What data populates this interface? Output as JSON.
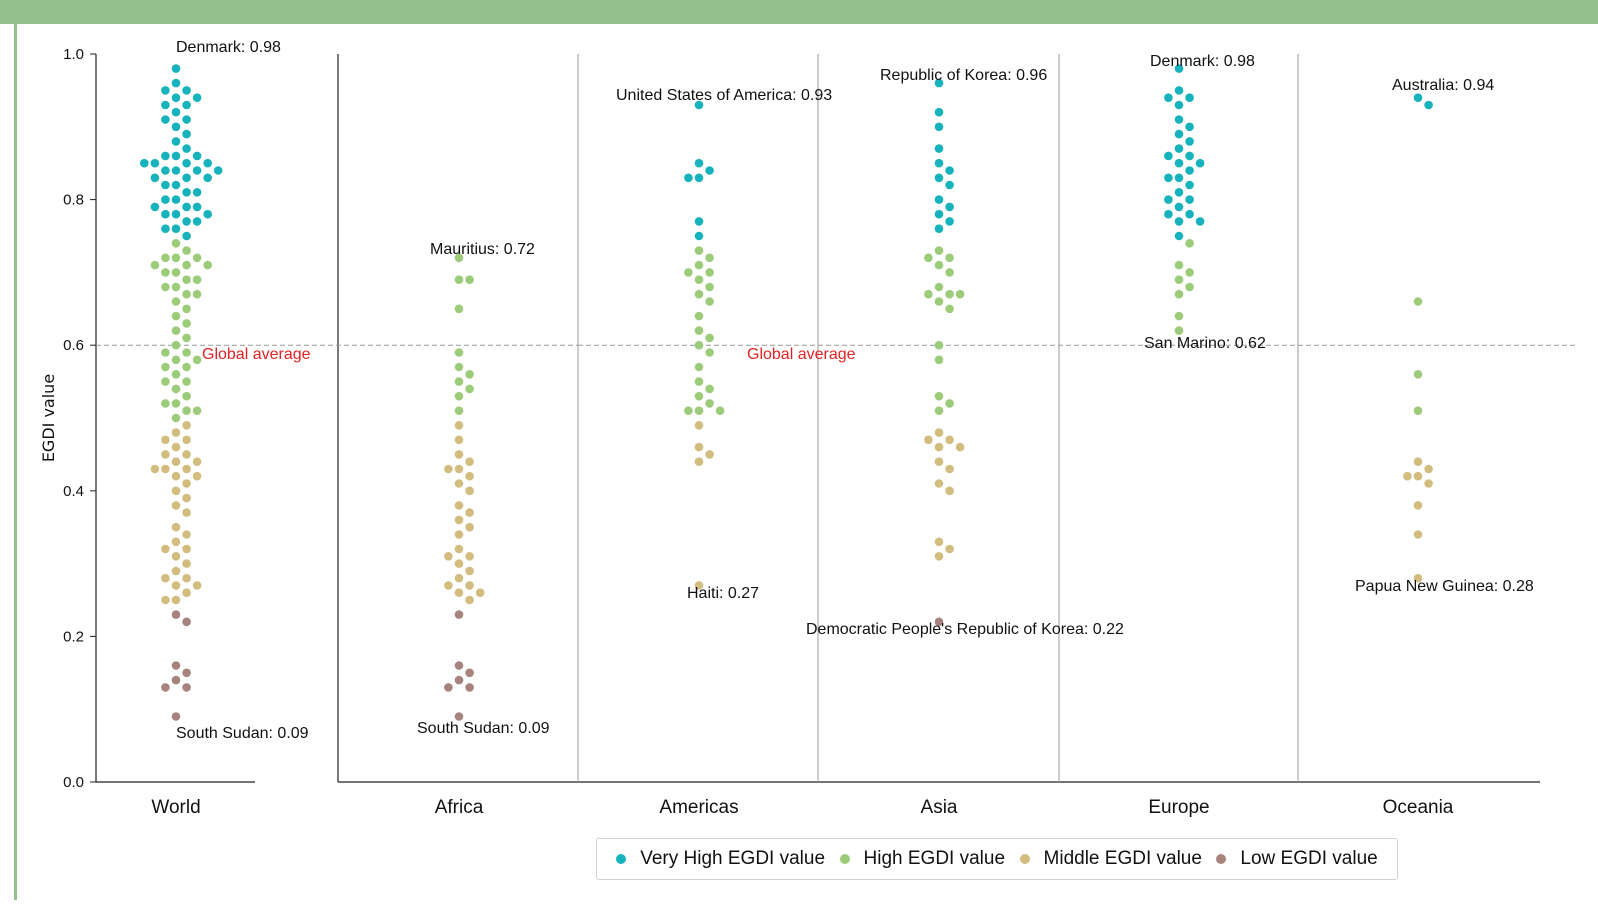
{
  "chart_data": {
    "type": "scatter",
    "subtype": "beeswarm",
    "ylabel": "EGDI value",
    "ylim": [
      0.0,
      1.0
    ],
    "yticks": [
      "0.0",
      "0.2",
      "0.4",
      "0.6",
      "0.8",
      "1.0"
    ],
    "categories": [
      "World",
      "Africa",
      "Americas",
      "Asia",
      "Europe",
      "Oceania"
    ],
    "global_average": 0.6,
    "global_average_label": "Global average",
    "legend_position": "bottom-center",
    "series": [
      {
        "name": "Very High EGDI value",
        "color": "#17b3bd"
      },
      {
        "name": "High EGDI value",
        "color": "#9ccc7a"
      },
      {
        "name": "Middle EGDI value",
        "color": "#d2bd7f"
      },
      {
        "name": "Low EGDI value",
        "color": "#a7837e"
      }
    ],
    "annotations": [
      {
        "category": "World",
        "text": "Denmark: 0.98",
        "value": 0.98
      },
      {
        "category": "World",
        "text": "South Sudan: 0.09",
        "value": 0.09
      },
      {
        "category": "Africa",
        "text": "Mauritius: 0.72",
        "value": 0.72
      },
      {
        "category": "Africa",
        "text": "South Sudan: 0.09",
        "value": 0.09
      },
      {
        "category": "Americas",
        "text": "United States of America: 0.93",
        "value": 0.93
      },
      {
        "category": "Americas",
        "text": "Haiti: 0.27",
        "value": 0.27
      },
      {
        "category": "Asia",
        "text": "Republic of Korea: 0.96",
        "value": 0.96
      },
      {
        "category": "Asia",
        "text": "Democratic People's Republic of Korea: 0.22",
        "value": 0.22
      },
      {
        "category": "Europe",
        "text": "Denmark: 0.98",
        "value": 0.98
      },
      {
        "category": "Europe",
        "text": "San Marino: 0.62",
        "value": 0.62
      },
      {
        "category": "Oceania",
        "text": "Australia: 0.94",
        "value": 0.94
      },
      {
        "category": "Oceania",
        "text": "Papua New Guinea: 0.28",
        "value": 0.28
      }
    ],
    "points": {
      "World": [
        0.98,
        0.96,
        0.95,
        0.95,
        0.94,
        0.94,
        0.93,
        0.93,
        0.92,
        0.91,
        0.91,
        0.9,
        0.89,
        0.88,
        0.87,
        0.86,
        0.86,
        0.86,
        0.85,
        0.85,
        0.85,
        0.85,
        0.84,
        0.84,
        0.84,
        0.84,
        0.83,
        0.83,
        0.83,
        0.82,
        0.82,
        0.81,
        0.81,
        0.8,
        0.8,
        0.79,
        0.79,
        0.79,
        0.78,
        0.78,
        0.78,
        0.77,
        0.77,
        0.76,
        0.76,
        0.75,
        0.74,
        0.73,
        0.72,
        0.72,
        0.72,
        0.71,
        0.71,
        0.71,
        0.7,
        0.7,
        0.69,
        0.69,
        0.68,
        0.68,
        0.67,
        0.67,
        0.66,
        0.65,
        0.64,
        0.63,
        0.62,
        0.61,
        0.6,
        0.59,
        0.59,
        0.58,
        0.58,
        0.57,
        0.57,
        0.56,
        0.55,
        0.55,
        0.54,
        0.53,
        0.52,
        0.52,
        0.51,
        0.51,
        0.5,
        0.49,
        0.48,
        0.47,
        0.47,
        0.46,
        0.45,
        0.45,
        0.44,
        0.44,
        0.43,
        0.43,
        0.43,
        0.42,
        0.42,
        0.41,
        0.4,
        0.39,
        0.38,
        0.37,
        0.35,
        0.34,
        0.33,
        0.32,
        0.32,
        0.31,
        0.3,
        0.29,
        0.28,
        0.28,
        0.27,
        0.27,
        0.26,
        0.25,
        0.25,
        0.23,
        0.22,
        0.16,
        0.15,
        0.14,
        0.13,
        0.13,
        0.09
      ],
      "Africa": [
        0.72,
        0.69,
        0.69,
        0.65,
        0.59,
        0.57,
        0.56,
        0.55,
        0.54,
        0.53,
        0.51,
        0.49,
        0.47,
        0.45,
        0.44,
        0.43,
        0.43,
        0.42,
        0.41,
        0.4,
        0.38,
        0.37,
        0.36,
        0.35,
        0.34,
        0.32,
        0.31,
        0.31,
        0.3,
        0.29,
        0.28,
        0.27,
        0.27,
        0.26,
        0.26,
        0.25,
        0.23,
        0.16,
        0.15,
        0.14,
        0.13,
        0.13,
        0.09
      ],
      "Americas": [
        0.93,
        0.85,
        0.84,
        0.83,
        0.83,
        0.77,
        0.75,
        0.73,
        0.72,
        0.71,
        0.7,
        0.7,
        0.69,
        0.68,
        0.67,
        0.66,
        0.64,
        0.62,
        0.61,
        0.6,
        0.59,
        0.57,
        0.55,
        0.54,
        0.53,
        0.52,
        0.51,
        0.51,
        0.51,
        0.49,
        0.46,
        0.45,
        0.44,
        0.27
      ],
      "Asia": [
        0.96,
        0.92,
        0.9,
        0.87,
        0.85,
        0.84,
        0.83,
        0.82,
        0.8,
        0.79,
        0.78,
        0.77,
        0.76,
        0.73,
        0.72,
        0.72,
        0.71,
        0.7,
        0.68,
        0.67,
        0.67,
        0.67,
        0.66,
        0.65,
        0.6,
        0.58,
        0.53,
        0.52,
        0.51,
        0.48,
        0.47,
        0.47,
        0.46,
        0.46,
        0.44,
        0.43,
        0.41,
        0.4,
        0.33,
        0.32,
        0.31,
        0.22
      ],
      "Europe": [
        0.98,
        0.95,
        0.94,
        0.94,
        0.93,
        0.91,
        0.9,
        0.89,
        0.88,
        0.87,
        0.86,
        0.86,
        0.85,
        0.85,
        0.84,
        0.83,
        0.83,
        0.82,
        0.81,
        0.8,
        0.8,
        0.79,
        0.78,
        0.78,
        0.77,
        0.77,
        0.75,
        0.74,
        0.71,
        0.7,
        0.69,
        0.68,
        0.67,
        0.64,
        0.62
      ],
      "Oceania": [
        0.94,
        0.93,
        0.66,
        0.56,
        0.51,
        0.44,
        0.43,
        0.42,
        0.42,
        0.41,
        0.38,
        0.34,
        0.28
      ]
    }
  }
}
